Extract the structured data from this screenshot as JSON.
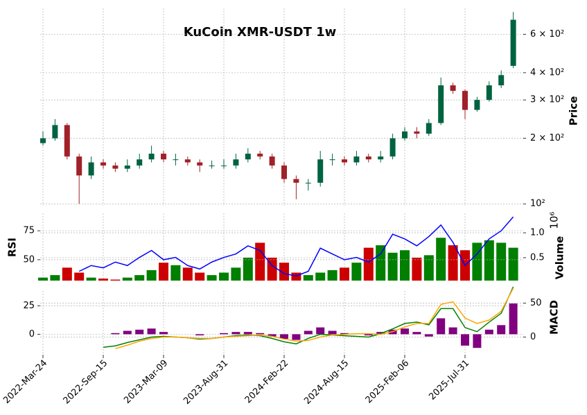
{
  "chart_data": {
    "type": "candlestick",
    "title": "KuCoin XMR-USDT 1w",
    "ylabel": "Price",
    "log_y": true,
    "grid": true,
    "up_color": "#006340",
    "down_color": "#a02128",
    "categories": [
      "2022-Mar-24",
      null,
      null,
      null,
      null,
      "2022-Sep-15",
      null,
      null,
      null,
      null,
      "2023-Mar-09",
      null,
      null,
      null,
      null,
      "2023-Aug-31",
      null,
      null,
      null,
      null,
      "2024-Feb-22",
      null,
      null,
      null,
      null,
      "2024-Aug-15",
      null,
      null,
      null,
      null,
      "2025-Feb-06",
      null,
      null,
      null,
      null,
      "2025-Jul-31",
      null,
      null,
      null,
      null
    ],
    "open": [
      190,
      200,
      230,
      165,
      135,
      155,
      150,
      145,
      150,
      160,
      170,
      160,
      160,
      155,
      150,
      150,
      150,
      160,
      170,
      165,
      150,
      130,
      125,
      125,
      160,
      160,
      155,
      165,
      160,
      165,
      200,
      215,
      210,
      235,
      350,
      330,
      270,
      300,
      350,
      430
    ],
    "high": [
      215,
      245,
      235,
      170,
      165,
      160,
      155,
      160,
      170,
      185,
      175,
      170,
      165,
      160,
      158,
      160,
      170,
      180,
      175,
      170,
      155,
      135,
      130,
      175,
      170,
      165,
      175,
      170,
      175,
      210,
      225,
      225,
      245,
      380,
      360,
      335,
      310,
      365,
      410,
      760
    ],
    "low": [
      185,
      195,
      160,
      100,
      130,
      145,
      140,
      140,
      145,
      155,
      155,
      150,
      150,
      140,
      145,
      145,
      145,
      155,
      160,
      145,
      125,
      105,
      115,
      120,
      150,
      150,
      150,
      155,
      155,
      160,
      195,
      200,
      205,
      230,
      320,
      245,
      265,
      295,
      340,
      420
    ],
    "close": [
      200,
      230,
      165,
      135,
      155,
      150,
      145,
      150,
      160,
      170,
      160,
      160,
      155,
      150,
      150,
      150,
      160,
      170,
      165,
      150,
      130,
      125,
      125,
      160,
      160,
      155,
      165,
      160,
      165,
      200,
      215,
      210,
      235,
      350,
      330,
      270,
      300,
      350,
      390,
      700
    ],
    "ylim": [
      98,
      790
    ],
    "yticks": [
      {
        "value": 100,
        "label": "10²"
      },
      {
        "value": 200,
        "label": "2 × 10²"
      },
      {
        "value": 300,
        "label": "3 × 10²"
      },
      {
        "value": 400,
        "label": "4 × 10²"
      },
      {
        "value": 600,
        "label": "6 × 10²"
      }
    ],
    "volume": {
      "ylabel": "Volume",
      "offset": "10⁶",
      "up_color": "#007f00",
      "down_color": "#cc0000",
      "values": [
        0.1,
        0.15,
        0.3,
        0.2,
        0.1,
        0.08,
        0.06,
        0.1,
        0.15,
        0.25,
        0.4,
        0.35,
        0.3,
        0.2,
        0.15,
        0.2,
        0.3,
        0.5,
        0.8,
        0.5,
        0.4,
        0.2,
        0.15,
        0.2,
        0.25,
        0.3,
        0.4,
        0.7,
        0.75,
        0.6,
        0.65,
        0.5,
        0.55,
        0.9,
        0.75,
        0.65,
        0.8,
        0.85,
        0.8,
        0.7
      ],
      "ylim": [
        0.04,
        1.39
      ],
      "yticks": [
        0.5,
        {
          "value": 1,
          "label": "1.0"
        }
      ]
    },
    "rsi": {
      "ylabel": "RSI",
      "color": "blue",
      "values": [
        null,
        null,
        null,
        40,
        45,
        43,
        48,
        45,
        52,
        58,
        50,
        52,
        45,
        42,
        48,
        52,
        55,
        62,
        58,
        45,
        38,
        36,
        40,
        60,
        55,
        50,
        52,
        48,
        55,
        72,
        68,
        62,
        70,
        80,
        65,
        45,
        55,
        68,
        75,
        87
      ],
      "ylim": [
        32,
        90
      ],
      "yticks": [
        50,
        75
      ]
    },
    "macd": {
      "ylabel": "MACD",
      "hist_color": "purple",
      "macd_color": "green",
      "signal_color": "orange",
      "hist": [
        null,
        null,
        null,
        null,
        null,
        null,
        1,
        3,
        4,
        5,
        2,
        0,
        0,
        -1,
        0,
        1,
        2,
        2,
        1,
        -2,
        -4,
        -5,
        3,
        6,
        3,
        1,
        0,
        -1,
        2,
        4,
        5,
        2,
        -2,
        14,
        6,
        -10,
        -12,
        4,
        8,
        27
      ],
      "ylim": [
        -18,
        38
      ],
      "yticks": [
        0,
        25
      ],
      "macd": [
        null,
        null,
        null,
        null,
        null,
        -15,
        -13,
        -8,
        -4,
        0,
        1,
        0,
        -1,
        -3,
        -2,
        0,
        2,
        3,
        2,
        -2,
        -7,
        -10,
        -2,
        4,
        3,
        2,
        1,
        0,
        5,
        12,
        20,
        22,
        18,
        42,
        42,
        14,
        8,
        22,
        35,
        74
      ],
      "signal": [
        null,
        null,
        null,
        null,
        null,
        null,
        -17,
        -12,
        -6,
        -2,
        0,
        0,
        -1,
        -2,
        -2,
        0,
        1,
        2,
        3,
        1,
        -3,
        -6,
        -5,
        0,
        3,
        4,
        5,
        5,
        4,
        8,
        15,
        20,
        20,
        48,
        52,
        28,
        20,
        25,
        38,
        72
      ],
      "y2lim": [
        -26,
        76
      ],
      "y2ticks": [
        0,
        50
      ]
    }
  }
}
